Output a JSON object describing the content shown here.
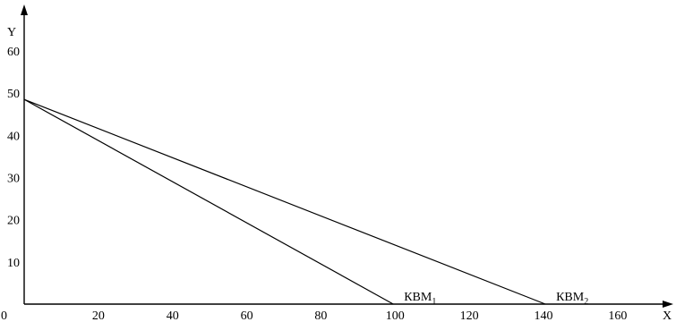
{
  "chart_data": {
    "type": "line",
    "title": "",
    "xlabel": "X",
    "ylabel": "Y",
    "xlim": [
      0,
      175
    ],
    "ylim": [
      0,
      71
    ],
    "x_ticks": [
      "0",
      "20",
      "40",
      "60",
      "80",
      "100",
      "120",
      "140",
      "160"
    ],
    "y_ticks": [
      "10",
      "20",
      "30",
      "40",
      "50",
      "60"
    ],
    "grid": false,
    "series": [
      {
        "name": "КВМ",
        "subscript": "1",
        "x": [
          0,
          99.5
        ],
        "y": [
          48.5,
          0
        ]
      },
      {
        "name": "КВМ",
        "subscript": "2",
        "x": [
          0,
          140.5
        ],
        "y": [
          48.5,
          0
        ]
      }
    ]
  }
}
